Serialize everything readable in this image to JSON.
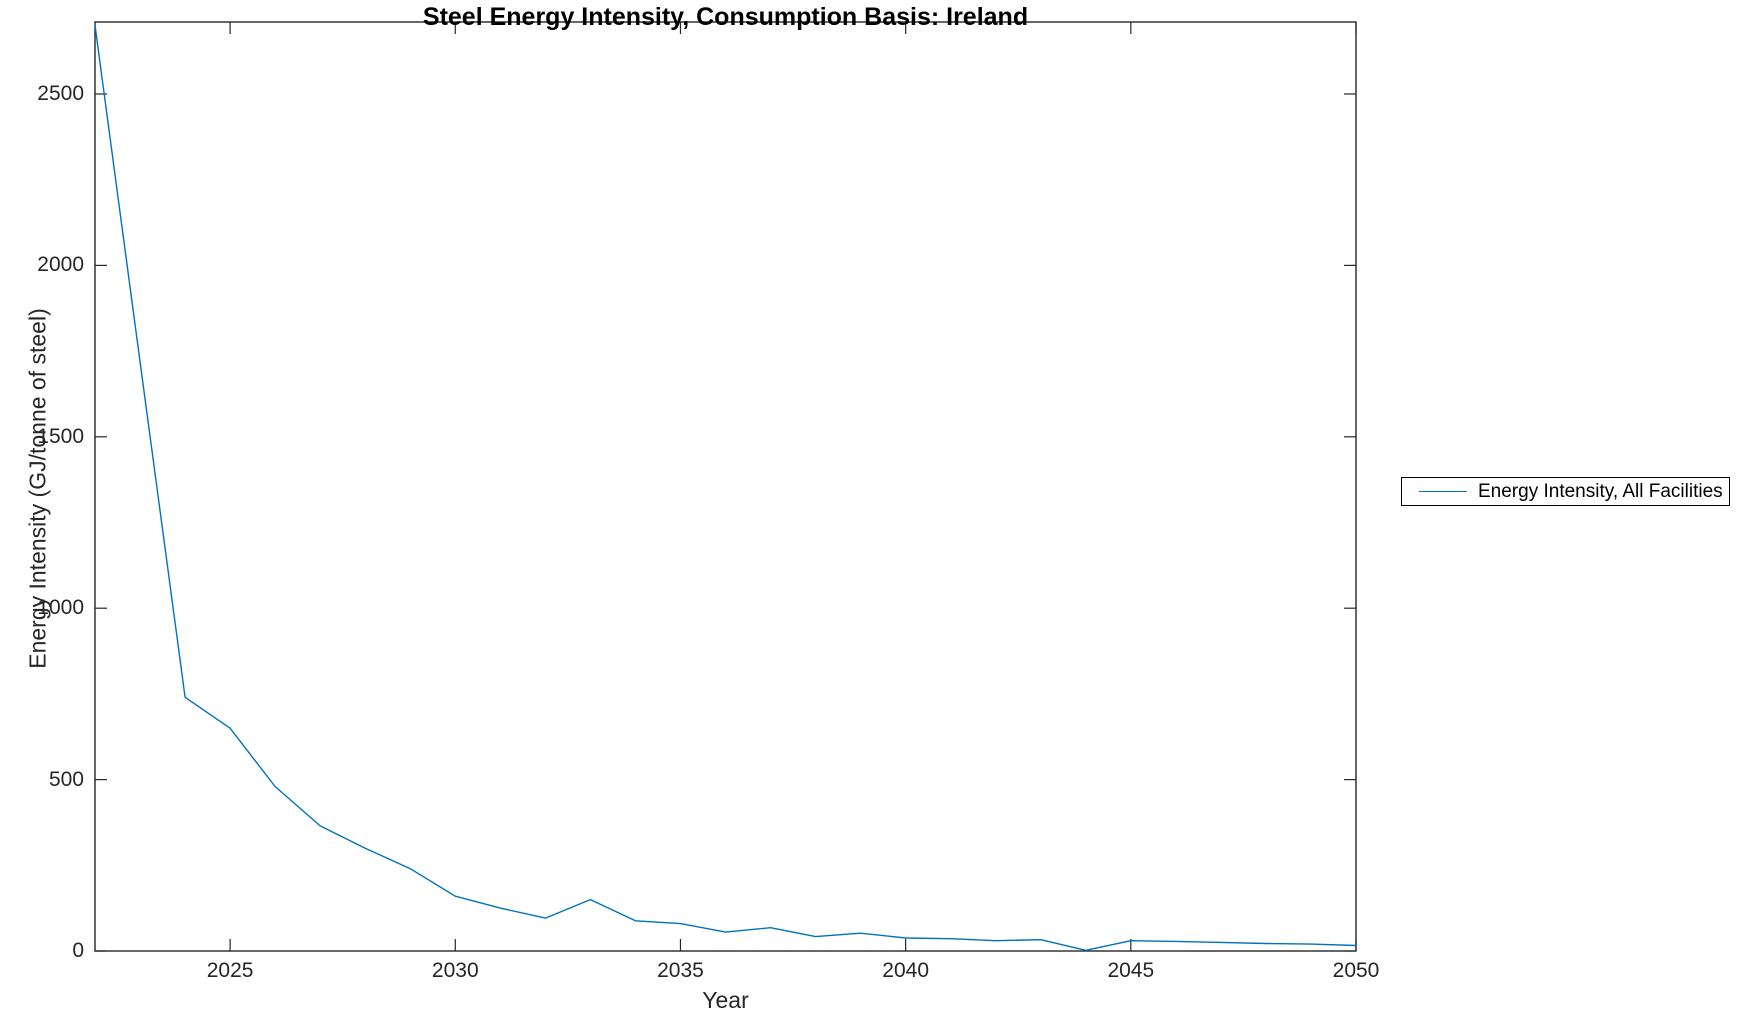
{
  "chart_data": {
    "type": "line",
    "title": "Steel Energy Intensity, Consumption Basis: Ireland",
    "xlabel": "Year",
    "ylabel": "Energy Intensity (GJ/tonne of steel)",
    "xlim": [
      2022,
      2050
    ],
    "ylim": [
      0,
      2710
    ],
    "x_ticks": [
      2025,
      2030,
      2035,
      2040,
      2045,
      2050
    ],
    "y_ticks": [
      0,
      500,
      1000,
      1500,
      2000,
      2500
    ],
    "grid": false,
    "box": "on",
    "tick_direction": "in",
    "axis_color": "#262626",
    "legend": {
      "position": "right-outside",
      "entries": [
        {
          "label": "Energy Intensity, All Facilities",
          "color": "#0072BD"
        }
      ]
    },
    "series": [
      {
        "name": "Energy Intensity, All Facilities",
        "color": "#0072BD",
        "x": [
          2022,
          2023,
          2024,
          2025,
          2026,
          2027,
          2028,
          2029,
          2030,
          2031,
          2032,
          2033,
          2034,
          2035,
          2036,
          2037,
          2038,
          2039,
          2040,
          2041,
          2042,
          2043,
          2044,
          2045,
          2046,
          2047,
          2048,
          2049,
          2050
        ],
        "values": [
          2700,
          1720,
          740,
          650,
          480,
          365,
          300,
          240,
          160,
          125,
          96,
          150,
          88,
          80,
          55,
          68,
          42,
          52,
          38,
          36,
          30,
          33,
          2,
          30,
          28,
          25,
          22,
          20,
          16
        ]
      }
    ]
  }
}
